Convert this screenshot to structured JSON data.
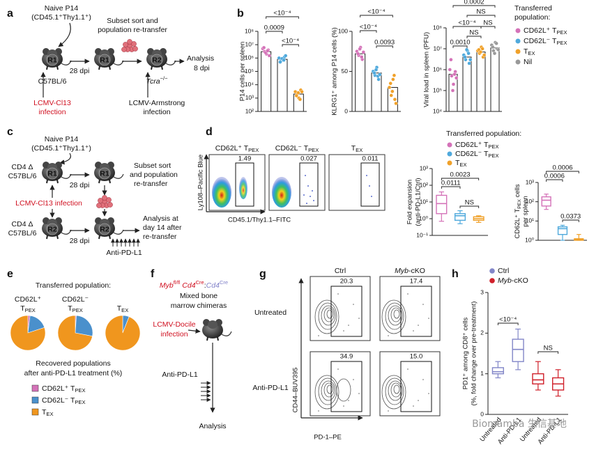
{
  "panel_labels": [
    "a",
    "b",
    "c",
    "d",
    "e",
    "f",
    "g",
    "h"
  ],
  "panel_a": {
    "naive": "Naive P14",
    "naive_sub": "(CD45.1⁺Thy1.1⁺)",
    "mice": [
      "R1",
      "R1",
      "R2"
    ],
    "day": "28 dpi",
    "host": "C57BL/6",
    "infection": [
      "LCMV-Cl13",
      "infection"
    ],
    "sort": [
      "Subset sort and",
      "population re-transfer"
    ],
    "analysis": [
      "Analysis",
      "8 dpi"
    ],
    "host2": [
      {
        "text": "Tcra",
        "italic": true
      },
      {
        "sup": "−/−"
      }
    ],
    "infection2": [
      "LCMV-Armstrong",
      "infection"
    ]
  },
  "panel_c": {
    "naive": "Naive P14",
    "naive_sub": "(CD45.1⁺Thy1.1⁺)",
    "host": [
      "CD4 Δ",
      "C57BL/6"
    ],
    "mice": [
      "R1",
      "R1",
      "R2",
      "R2"
    ],
    "day": "28 dpi",
    "sort": [
      "Subset sort",
      "and population",
      "re-transfer"
    ],
    "infection": "LCMV-Cl13 infection",
    "host2": [
      "CD4 Δ",
      "C57BL/6"
    ],
    "day2": "28 dpi",
    "analysis": [
      "Analysis at",
      "day 14 after",
      "re-transfer"
    ],
    "treatment": "Anti-PD-L1"
  },
  "legend_b": {
    "title": [
      "Transferred",
      "population:"
    ],
    "items": [
      {
        "label": [
          {
            "text": "CD62L⁺ T"
          },
          {
            "sub": "PEX"
          }
        ],
        "color": "#d472b8"
      },
      {
        "label": [
          {
            "text": "CD62L⁻ T"
          },
          {
            "sub": "PEX"
          }
        ],
        "color": "#4fa9dc"
      },
      {
        "label": [
          {
            "text": "T"
          },
          {
            "sub": "EX"
          }
        ],
        "color": "#f0a12a"
      },
      {
        "label": "Nil",
        "color": "#999999"
      }
    ]
  },
  "panel_d": {
    "plots": [
      {
        "title": [
          {
            "text": "CD62L⁺ T"
          },
          {
            "sub": "PEX"
          }
        ],
        "gate": "1.49"
      },
      {
        "title": [
          {
            "text": "CD62L⁻ T"
          },
          {
            "sub": "PEX"
          }
        ],
        "gate": "0.027"
      },
      {
        "title": [
          {
            "text": "T"
          },
          {
            "sub": "EX"
          }
        ],
        "gate": "0.011"
      }
    ],
    "ylabel": "Ly108–Pacific Blue",
    "xlabel": "CD45.1/Thy1.1–FITC"
  },
  "legend_d": {
    "title": "Transferred population:",
    "items": [
      {
        "label": [
          {
            "text": "CD62L⁺ T"
          },
          {
            "sub": "PEX"
          }
        ],
        "color": "#d472b8"
      },
      {
        "label": [
          {
            "text": "CD62L⁻ T"
          },
          {
            "sub": "PEX"
          }
        ],
        "color": "#4fa9dc"
      },
      {
        "label": [
          {
            "text": "T"
          },
          {
            "sub": "EX"
          }
        ],
        "color": "#f0a12a"
      }
    ]
  },
  "panel_e": {
    "title": "Transferred population:",
    "caption": [
      "Recovered populations",
      "after anti-PD-L1 treatment (%)"
    ],
    "legend": [
      {
        "label": [
          {
            "text": "CD62L⁺ T"
          },
          {
            "sub": "PEX"
          }
        ],
        "color": "#d472b8"
      },
      {
        "label": [
          {
            "text": "CD62L⁻ T"
          },
          {
            "sub": "PEX"
          }
        ],
        "color": "#4a90cc"
      },
      {
        "label": [
          {
            "text": "T"
          },
          {
            "sub": "EX"
          }
        ],
        "color": "#f0961e"
      }
    ]
  },
  "panel_f": {
    "genotype": [
      {
        "text": "Myb",
        "italic": true,
        "color": "#d01020"
      },
      {
        "sup": "fl/fl",
        "color": "#d01020"
      },
      {
        "text": " Cd4",
        "italic": true,
        "color": "#d01020"
      },
      {
        "sup": "Cre",
        "color": "#d01020"
      },
      {
        "text": ":"
      },
      {
        "text": "Cd4",
        "italic": true,
        "color": "#8080c8"
      },
      {
        "sup": "Cre",
        "color": "#8080c8"
      }
    ],
    "chimera": [
      "Mixed bone",
      "marrow chimeras"
    ],
    "infection": [
      "LCMV-Docile",
      "infection"
    ],
    "treatment": "Anti-PD-L1",
    "analysis": "Analysis"
  },
  "panel_g": {
    "columns": [
      "Ctrl",
      [
        {
          "text": "Myb",
          "italic": true
        },
        {
          "text": "-cKO"
        }
      ]
    ],
    "rows": [
      "Untreated",
      "Anti-PD-L1"
    ],
    "gates": [
      [
        "20.3",
        "17.4"
      ],
      [
        "34.9",
        "15.0"
      ]
    ],
    "ylabel": "CD44–BUV395",
    "xlabel": "PD-1–PE"
  },
  "legend_h": {
    "items": [
      {
        "label": "Ctrl",
        "color": "#8286c8"
      },
      {
        "label": [
          {
            "text": "Myb",
            "italic": true
          },
          {
            "text": "-cKO"
          }
        ],
        "color": "#d0202a"
      }
    ]
  },
  "watermark": "Biomamba 生信基地",
  "chart_data": [
    {
      "type": "bar",
      "scale": "log",
      "ylabel": "P14 cells per spleen",
      "ylim": [
        100,
        100000000
      ],
      "yticks": [
        {
          "value": 100,
          "label": "10²"
        },
        {
          "value": 1000,
          "label": "10³"
        },
        {
          "value": 10000,
          "label": "10⁴"
        },
        {
          "value": 100000,
          "label": "10⁵"
        },
        {
          "value": 1000000,
          "label": "10⁶"
        },
        {
          "value": 10000000,
          "label": "10⁷"
        },
        {
          "value": 100000000,
          "label": "10⁸"
        }
      ],
      "values": [
        3000000,
        800000,
        2000
      ],
      "colors": [
        "#d472b8",
        "#4fa9dc",
        "#f0a12a"
      ],
      "points": [
        [
          5000000,
          3000000,
          2000000,
          4000000,
          6000000,
          2500000,
          3500000,
          1500000
        ],
        [
          1000000,
          600000,
          800000,
          1200000,
          500000,
          900000,
          700000,
          1500000
        ],
        [
          3000,
          2000,
          1000,
          4000,
          1500,
          2500,
          800,
          3000
        ]
      ],
      "annotations": [
        {
          "between": [
            0,
            2
          ],
          "label": "<10⁻⁴"
        },
        {
          "between": [
            0,
            1
          ],
          "label": "0.0009"
        },
        {
          "between": [
            1,
            2
          ],
          "label": "<10⁻⁴"
        }
      ]
    },
    {
      "type": "bar",
      "scale": "linear",
      "ylabel": "KLRG1⁺ among P14 cells (%)",
      "ylim": [
        0,
        100
      ],
      "yticks": [
        0,
        50,
        100
      ],
      "values": [
        72,
        48,
        30
      ],
      "colors": [
        "#d472b8",
        "#4fa9dc",
        "#f0a12a"
      ],
      "points": [
        [
          75,
          70,
          80,
          65,
          72,
          78,
          68,
          74
        ],
        [
          50,
          45,
          55,
          40,
          48,
          52,
          44,
          46
        ],
        [
          30,
          20,
          40,
          15,
          35,
          25,
          45,
          10
        ]
      ],
      "annotations": [
        {
          "between": [
            0,
            2
          ],
          "label": "<10⁻⁴"
        },
        {
          "between": [
            0,
            1
          ],
          "label": "<10⁻⁴"
        },
        {
          "between": [
            1,
            2
          ],
          "label": "0.0093"
        }
      ]
    },
    {
      "type": "bar",
      "scale": "log",
      "ylabel": "Viral load in spleen (PFU)",
      "ylim": [
        10000,
        100000000
      ],
      "yticks": [
        {
          "value": 10000,
          "label": "10⁴"
        },
        {
          "value": 100000,
          "label": "10⁵"
        },
        {
          "value": 1000000,
          "label": "10⁶"
        },
        {
          "value": 10000000,
          "label": "10⁷"
        },
        {
          "value": 100000000,
          "label": "10⁸"
        }
      ],
      "values": [
        600000,
        4000000,
        7000000,
        11000000
      ],
      "colors": [
        "#d472b8",
        "#4fa9dc",
        "#f0a12a",
        "#999999"
      ],
      "points": [
        [
          1000000,
          500000,
          200000,
          800000,
          3000000,
          100000,
          600000,
          400000
        ],
        [
          5000000,
          3000000,
          8000000,
          2000000,
          4000000,
          9000000,
          6000000,
          3000000
        ],
        [
          8000000,
          6000000,
          12000000,
          4000000,
          9000000,
          7000000,
          10000000,
          5000000
        ],
        [
          15000000,
          8000000,
          20000000,
          10000000,
          12000000,
          6000000,
          18000000,
          9000000
        ]
      ],
      "annotations": [
        {
          "between": [
            0,
            3
          ],
          "label": "0.0002"
        },
        {
          "between": [
            1,
            3
          ],
          "label": "NS"
        },
        {
          "between": [
            0,
            2
          ],
          "label": "<10⁻⁴"
        },
        {
          "between": [
            2,
            3
          ],
          "label": "NS"
        },
        {
          "between": [
            1,
            2
          ],
          "label": "NS"
        },
        {
          "between": [
            0,
            1
          ],
          "label": "0.0010"
        }
      ]
    },
    {
      "type": "box",
      "scale": "log",
      "ylabel": [
        "Fold expansion",
        "(anti-PD-L1/Ctrl)"
      ],
      "ylim": [
        0.1,
        1000
      ],
      "yticks": [
        {
          "value": 0.1,
          "label": "10⁻¹"
        },
        {
          "value": 1,
          "label": "10⁰"
        },
        {
          "value": 10,
          "label": "10¹"
        },
        {
          "value": 100,
          "label": "10²"
        },
        {
          "value": 1000,
          "label": "10³"
        }
      ],
      "boxes": [
        {
          "min": 0.7,
          "q1": 2,
          "median": 8,
          "q3": 25,
          "max": 40
        },
        {
          "min": 0.5,
          "q1": 0.8,
          "median": 1.5,
          "q3": 2,
          "max": 3
        },
        {
          "min": 0.6,
          "q1": 0.8,
          "median": 1,
          "q3": 1.3,
          "max": 1.5
        }
      ],
      "colors": [
        "#d472b8",
        "#4fa9dc",
        "#f0a12a"
      ],
      "annotations": [
        {
          "between": [
            0,
            2
          ],
          "label": "0.0023"
        },
        {
          "between": [
            0,
            1
          ],
          "label": "0.0111"
        },
        {
          "between": [
            1,
            2
          ],
          "label": "NS"
        }
      ]
    },
    {
      "type": "box",
      "scale": "log",
      "ylabel": [
        [
          {
            "text": "CD62L⁺ T"
          },
          {
            "sub": "PEX"
          },
          {
            "text": " cells"
          }
        ],
        "per spleen"
      ],
      "ylim": [
        1,
        1000
      ],
      "yticks": [
        {
          "value": 1,
          "label": "10⁰"
        },
        {
          "value": 10,
          "label": "10¹"
        },
        {
          "value": 100,
          "label": "10²"
        },
        {
          "value": 1000,
          "label": "10³"
        }
      ],
      "boxes": [
        {
          "min": 40,
          "q1": 60,
          "median": 120,
          "q3": 180,
          "max": 250
        },
        {
          "min": 1,
          "q1": 2,
          "median": 4,
          "q3": 5,
          "max": 6
        },
        {
          "min": 1,
          "q1": 1,
          "median": 1.1,
          "q3": 1.2,
          "max": 2
        }
      ],
      "colors": [
        "#d472b8",
        "#4fa9dc",
        "#f0a12a"
      ],
      "annotations": [
        {
          "between": [
            0,
            2
          ],
          "label": "0.0006"
        },
        {
          "between": [
            0,
            1
          ],
          "label": "0.0006"
        },
        {
          "between": [
            1,
            2
          ],
          "label": "0.0373"
        }
      ]
    },
    {
      "type": "pie",
      "title": [
        "CD62L⁺",
        [
          {
            "text": "T"
          },
          {
            "sub": "PEX"
          }
        ]
      ],
      "values": [
        2,
        18,
        80
      ],
      "colors": [
        "#d472b8",
        "#4a90cc",
        "#f0961e"
      ]
    },
    {
      "type": "pie",
      "title": [
        "CD62L⁻",
        [
          {
            "text": "T"
          },
          {
            "sub": "PEX"
          }
        ]
      ],
      "values": [
        1,
        27,
        72
      ],
      "colors": [
        "#d472b8",
        "#4a90cc",
        "#f0961e"
      ]
    },
    {
      "type": "pie",
      "title": [
        [
          {
            "text": "T"
          },
          {
            "sub": "EX"
          }
        ]
      ],
      "values": [
        0,
        6,
        94
      ],
      "colors": [
        "#d472b8",
        "#4a90cc",
        "#f0961e"
      ]
    },
    {
      "type": "box",
      "scale": "linear",
      "ylabel": [
        "PD1⁺ among CD8⁺ cells",
        "(%, fold change over pre-treatment)"
      ],
      "ylim": [
        0,
        3
      ],
      "yticks": [
        0,
        1,
        2,
        3
      ],
      "categories": [
        "Untreated",
        "Anti-PD-L1",
        "Untreated",
        "Anti-PD-L1"
      ],
      "boxes": [
        {
          "min": 0.9,
          "q1": 1,
          "median": 1.05,
          "q3": 1.15,
          "max": 1.3
        },
        {
          "min": 1.1,
          "q1": 1.3,
          "median": 1.6,
          "q3": 1.85,
          "max": 2.1
        },
        {
          "min": 0.6,
          "q1": 0.75,
          "median": 0.85,
          "q3": 1,
          "max": 1.3
        },
        {
          "min": 0.45,
          "q1": 0.6,
          "median": 0.75,
          "q3": 0.9,
          "max": 1.1
        }
      ],
      "colors": [
        "#8286c8",
        "#8286c8",
        "#d0202a",
        "#d0202a"
      ],
      "annotations": [
        {
          "between": [
            0,
            1
          ],
          "label": "<10⁻⁴"
        },
        {
          "between": [
            2,
            3
          ],
          "label": "NS"
        }
      ]
    }
  ]
}
